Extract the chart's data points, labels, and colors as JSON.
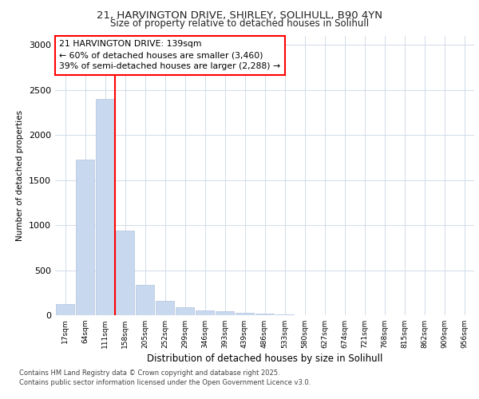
{
  "title_line1": "21, HARVINGTON DRIVE, SHIRLEY, SOLIHULL, B90 4YN",
  "title_line2": "Size of property relative to detached houses in Solihull",
  "xlabel": "Distribution of detached houses by size in Solihull",
  "ylabel": "Number of detached properties",
  "bar_color": "#c8d8ee",
  "bar_edge_color": "#b0c4de",
  "vline_color": "red",
  "annotation_text": "21 HARVINGTON DRIVE: 139sqm\n← 60% of detached houses are smaller (3,460)\n39% of semi-detached houses are larger (2,288) →",
  "footer_line1": "Contains HM Land Registry data © Crown copyright and database right 2025.",
  "footer_line2": "Contains public sector information licensed under the Open Government Licence v3.0.",
  "categories": [
    "17sqm",
    "64sqm",
    "111sqm",
    "158sqm",
    "205sqm",
    "252sqm",
    "299sqm",
    "346sqm",
    "393sqm",
    "439sqm",
    "486sqm",
    "533sqm",
    "580sqm",
    "627sqm",
    "674sqm",
    "721sqm",
    "768sqm",
    "815sqm",
    "862sqm",
    "909sqm",
    "956sqm"
  ],
  "values": [
    120,
    1730,
    2400,
    940,
    335,
    160,
    90,
    55,
    45,
    30,
    18,
    10,
    3,
    0,
    0,
    0,
    0,
    0,
    0,
    0,
    0
  ],
  "ylim": [
    0,
    3100
  ],
  "yticks": [
    0,
    500,
    1000,
    1500,
    2000,
    2500,
    3000
  ],
  "background_color": "#ffffff",
  "plot_bg_color": "#ffffff",
  "grid_color": "#d0dce8"
}
